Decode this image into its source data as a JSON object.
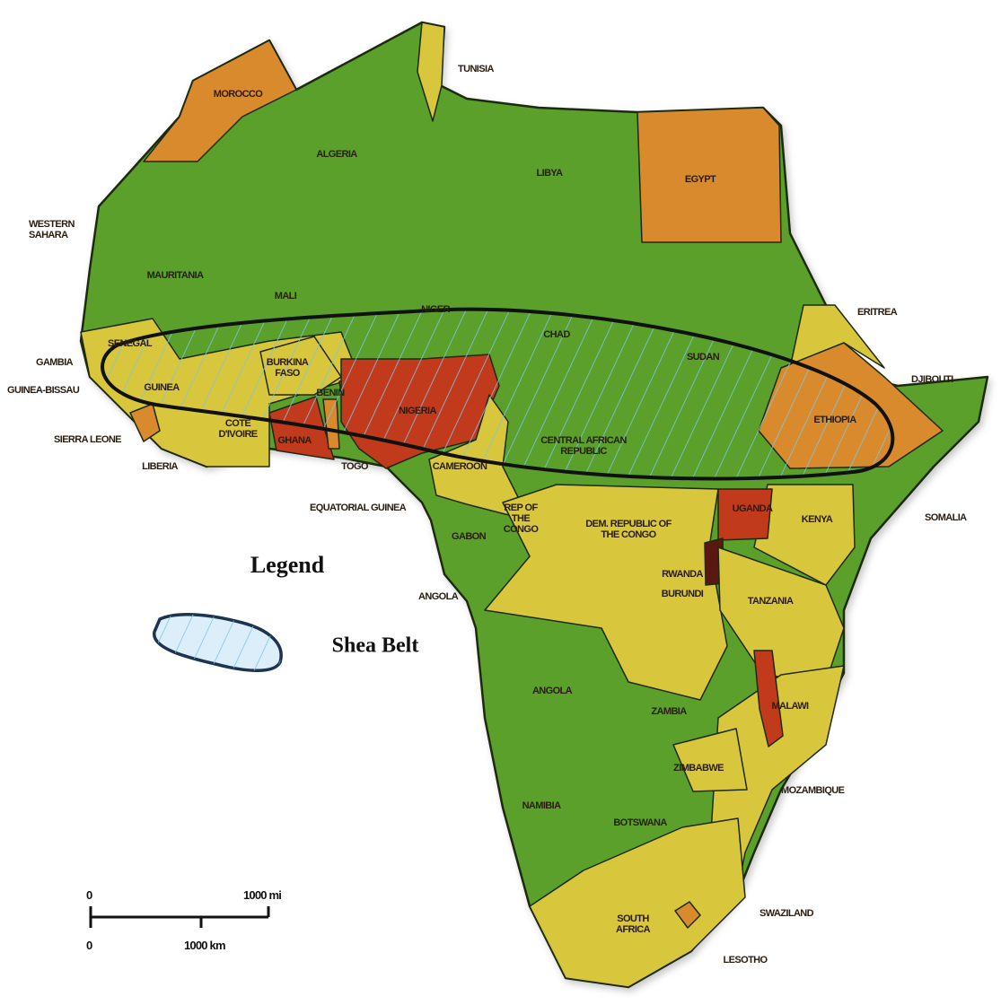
{
  "colors": {
    "green": "#5aa02c",
    "yellow": "#d8c63c",
    "orange": "#d98a2c",
    "red": "#c23a1c",
    "maroon": "#5a1810",
    "border": "#1e2a10",
    "shea_hatch": "#7cc6e8"
  },
  "labels": [
    "TUNISIA",
    "MOROCCO",
    "ALGERIA",
    "LIBYA",
    "EGYPT",
    "WESTERN\nSAHARA",
    "MAURITANIA",
    "MALI",
    "NIGER",
    "CHAD",
    "SUDAN",
    "ERITREA",
    "DJIBOUTI",
    "SENEGAL",
    "GAMBIA",
    "GUINEA-BISSAU",
    "GUINEA",
    "BURKINA\nFASO",
    "BENIN",
    "NIGERIA",
    "COTE\nD'IVOIRE",
    "GHANA",
    "SIERRA LEONE",
    "LIBERIA",
    "TOGO",
    "CAMEROON",
    "CENTRAL AFRICAN\nREPUBLIC",
    "ETHIOPIA",
    "SOMALIA",
    "KENYA",
    "UGANDA",
    "EQUATORIAL GUINEA",
    "REP OF\nTHE\nCONGO",
    "GABON",
    "DEM. REPUBLIC OF\nTHE CONGO",
    "RWANDA",
    "BURUNDI",
    "TANZANIA",
    "ANGOLA",
    "ANGOLA",
    "ZAMBIA",
    "MALAWI",
    "MOZAMBIQUE",
    "ZIMBABWE",
    "NAMIBIA",
    "BOTSWANA",
    "SWAZILAND",
    "SOUTH\nAFRICA",
    "LESOTHO"
  ],
  "legend": {
    "title": "Legend",
    "items": [
      {
        "label": "Shea Belt",
        "pattern": "blue-hatched"
      }
    ]
  },
  "scale_bar": {
    "top_zero": "0",
    "top_end": "1000 mi",
    "bottom_zero": "0",
    "bottom_mid": "1000 km"
  }
}
